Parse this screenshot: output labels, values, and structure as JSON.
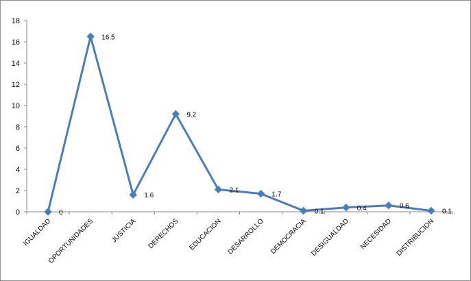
{
  "chart_data": {
    "type": "line",
    "title": "",
    "xlabel": "",
    "ylabel": "",
    "ylim": [
      0,
      18
    ],
    "yticks": [
      0,
      2,
      4,
      6,
      8,
      10,
      12,
      14,
      16,
      18
    ],
    "categories": [
      "IGUALDAD",
      "OPORTUNIDADES",
      "JUSTICIA",
      "DERECHOS",
      "EDUCACION",
      "DESARROLLO",
      "DEMOCRACIA",
      "DESIGUALDAD",
      "NECESIDAD",
      "DISTRIBUCION"
    ],
    "series": [
      {
        "values": [
          0,
          16.5,
          1.6,
          9.2,
          2.1,
          1.7,
          0.1,
          0.4,
          0.6,
          0.1
        ],
        "labels": [
          "0",
          "16.5",
          "1.6",
          "9.2",
          "2.1",
          "1.7",
          "0.1",
          "0.4",
          "0.6",
          "0.1"
        ],
        "color": "#4a7ebb",
        "marker": "diamond"
      }
    ],
    "grid": false,
    "legend": "none"
  }
}
